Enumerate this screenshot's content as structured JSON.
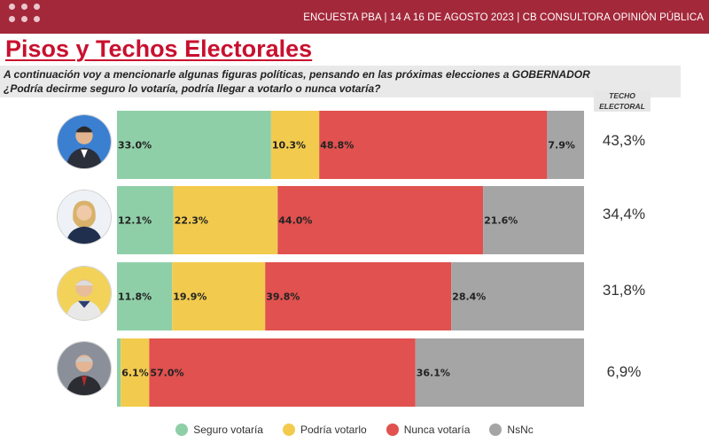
{
  "header": {
    "text": "ENCUESTA PBA | 14 A 16 DE AGOSTO 2023 | CB CONSULTORA OPINIÓN PÚBLICA"
  },
  "title": "Pisos y Techos Electorales",
  "question": {
    "line1": "A continuación voy a mencionarle algunas figuras políticas, pensando en las próximas elecciones a GOBERNADOR",
    "line2": "¿Podría  decirme seguro lo votaría, podría llegar a votarlo o nunca votaría?"
  },
  "techo_header": {
    "line1": "TECHO",
    "line2": "ELECTORAL"
  },
  "rows": [
    {
      "avatar_icon": "person-photo-icon",
      "techo": "43,3%"
    },
    {
      "avatar_icon": "person-photo-icon",
      "techo": "34,4%"
    },
    {
      "avatar_icon": "person-photo-icon",
      "techo": "31,8%"
    },
    {
      "avatar_icon": "person-photo-icon",
      "techo": "6,9%"
    }
  ],
  "colors": {
    "seguro": "#8fcfa8",
    "podria": "#f2cb4e",
    "nunca": "#e0514f",
    "nsnc": "#a5a5a6"
  },
  "chart_data": {
    "type": "bar",
    "orientation": "horizontal-stacked",
    "categories": [
      "1",
      "2",
      "3",
      "4"
    ],
    "series": [
      {
        "name": "Seguro votaría",
        "values": [
          33.0,
          12.1,
          11.8,
          0.8
        ]
      },
      {
        "name": "Podría votarlo",
        "values": [
          10.3,
          22.3,
          19.9,
          6.1
        ]
      },
      {
        "name": "Nunca votaría",
        "values": [
          48.8,
          44.0,
          39.8,
          57.0
        ]
      },
      {
        "name": "NsNc",
        "values": [
          7.9,
          21.6,
          28.4,
          36.1
        ]
      }
    ],
    "data_labels": [
      [
        "33.0%",
        "10.3%",
        "48.8%",
        "7.9%"
      ],
      [
        "12.1%",
        "22.3%",
        "44.0%",
        "21.6%"
      ],
      [
        "11.8%",
        "19.9%",
        "39.8%",
        "28.4%"
      ],
      [
        "",
        "6.1%",
        "57.0%",
        "36.1%"
      ]
    ],
    "title": "Pisos y Techos Electorales",
    "xlim": [
      0,
      100
    ],
    "grid": false,
    "legend": "bottom"
  }
}
